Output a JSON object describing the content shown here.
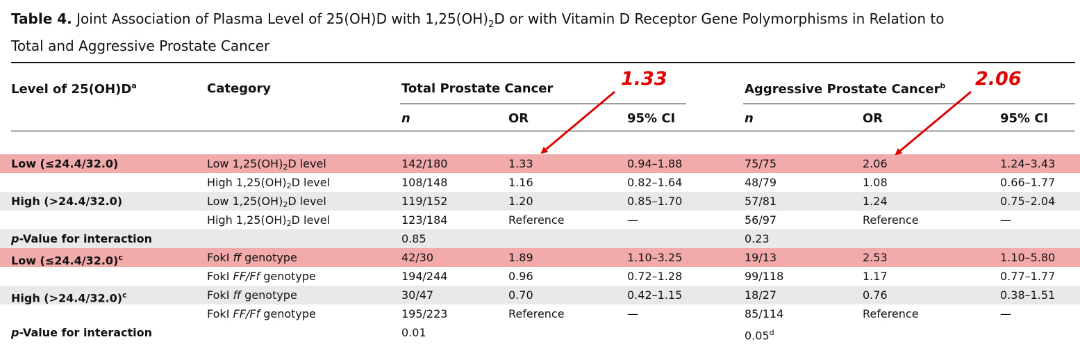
{
  "caption": {
    "label": "Table 4.",
    "text_before_sub": " Joint Association of Plasma Level of 25(OH)D with 1,25(OH)",
    "sub": "2",
    "text_after_sub": "D or with Vitamin D Receptor Gene Polymorphisms in Relation to",
    "line2": "Total and Aggressive Prostate Cancer"
  },
  "headers": {
    "level": "Level of 25(OH)D",
    "level_sup": "a",
    "category": "Category",
    "total": "Total Prostate Cancer",
    "aggressive": "Aggressive Prostate Cancer",
    "aggressive_sup": "b",
    "n": "n",
    "or": "OR",
    "ci": "95% CI"
  },
  "annotations": {
    "total_or": "1.33",
    "aggressive_or": "2.06"
  },
  "rows": [
    {
      "level": "Low (≤24.4/32.0)",
      "level_sup": "",
      "cat_pre": "Low 1,25(OH)",
      "cat_sub": "2",
      "cat_post": "D level",
      "t_n": "142/180",
      "t_or": "1.33",
      "t_ci": "0.94–1.88",
      "a_n": "75/75",
      "a_or": "2.06",
      "a_ci": "1.24–3.43"
    },
    {
      "level": "",
      "level_sup": "",
      "cat_pre": "High 1,25(OH)",
      "cat_sub": "2",
      "cat_post": "D level",
      "t_n": "108/148",
      "t_or": "1.16",
      "t_ci": "0.82–1.64",
      "a_n": "48/79",
      "a_or": "1.08",
      "a_ci": "0.66–1.77"
    },
    {
      "level": "High (>24.4/32.0)",
      "level_sup": "",
      "cat_pre": "Low 1,25(OH)",
      "cat_sub": "2",
      "cat_post": "D level",
      "t_n": "119/152",
      "t_or": "1.20",
      "t_ci": "0.85–1.70",
      "a_n": "57/81",
      "a_or": "1.24",
      "a_ci": "0.75–2.04"
    },
    {
      "level": "",
      "level_sup": "",
      "cat_pre": "High 1,25(OH)",
      "cat_sub": "2",
      "cat_post": "D level",
      "t_n": "123/184",
      "t_or": "Reference",
      "t_ci": "—",
      "a_n": "56/97",
      "a_or": "Reference",
      "a_ci": "—"
    },
    {
      "level_p": "p",
      "level_rest": "-Value for interaction",
      "t_n": "0.85",
      "a_n": "0.23"
    },
    {
      "level": "Low (≤24.4/32.0)",
      "level_sup": "c",
      "cat_pre": "FokI ",
      "cat_it": "ff",
      "cat_post": " genotype",
      "t_n": "42/30",
      "t_or": "1.89",
      "t_ci": "1.10–3.25",
      "a_n": "19/13",
      "a_or": "2.53",
      "a_ci": "1.10–5.80"
    },
    {
      "level": "",
      "level_sup": "",
      "cat_pre": "FokI ",
      "cat_it": "FF/Ff",
      "cat_post": " genotype",
      "t_n": "194/244",
      "t_or": "0.96",
      "t_ci": "0.72–1.28",
      "a_n": "99/118",
      "a_or": "1.17",
      "a_ci": "0.77–1.77"
    },
    {
      "level": "High (>24.4/32.0)",
      "level_sup": "c",
      "cat_pre": "FokI ",
      "cat_it": "ff",
      "cat_post": " genotype",
      "t_n": "30/47",
      "t_or": "0.70",
      "t_ci": "0.42–1.15",
      "a_n": "18/27",
      "a_or": "0.76",
      "a_ci": "0.38–1.51"
    },
    {
      "level": "",
      "level_sup": "",
      "cat_pre": "FokI ",
      "cat_it": "FF/Ff",
      "cat_post": " genotype",
      "t_n": "195/223",
      "t_or": "Reference",
      "t_ci": "—",
      "a_n": "85/114",
      "a_or": "Reference",
      "a_ci": "—"
    },
    {
      "level_p": "p",
      "level_rest": "-Value for interaction",
      "t_n": "0.01",
      "a_n": "0.05",
      "a_n_sup": "d"
    }
  ],
  "colors": {
    "highlight": "#f2aaaa",
    "shade": "#e9e9e9",
    "annotation": "#e00000"
  }
}
